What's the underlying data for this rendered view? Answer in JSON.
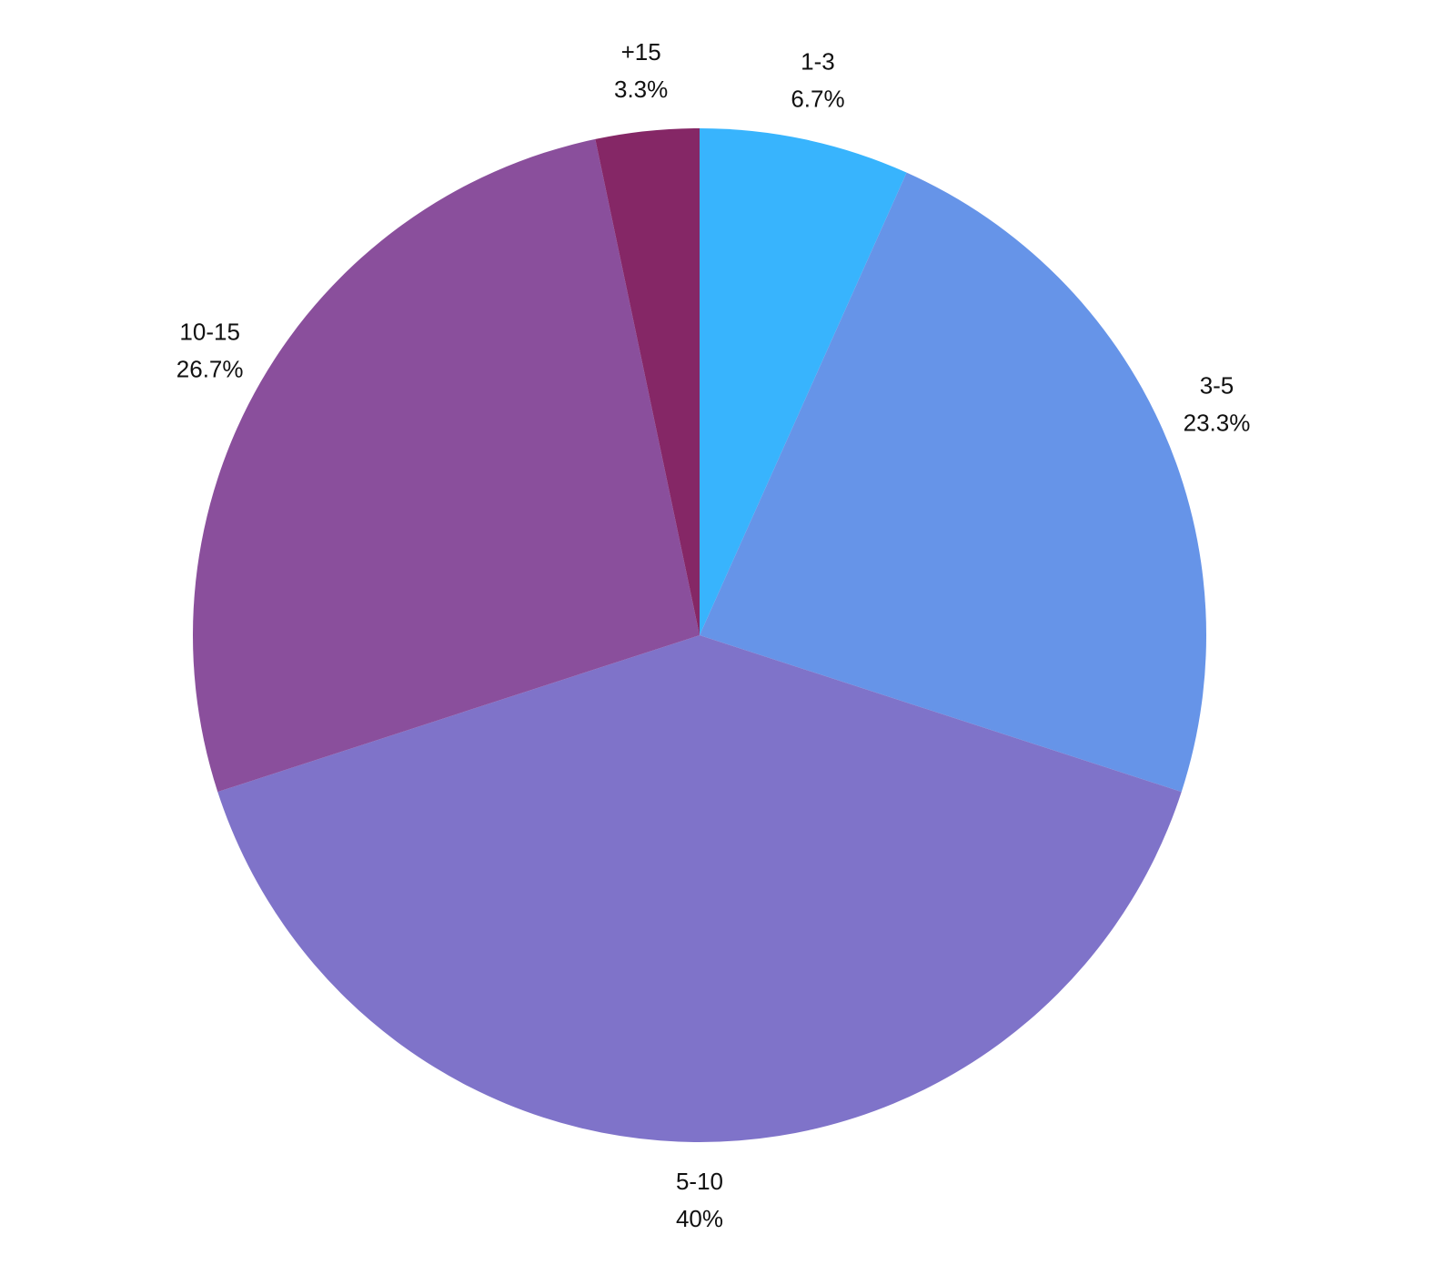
{
  "chart_data": {
    "type": "pie",
    "categories": [
      "1-3",
      "3-5",
      "5-10",
      "10-15",
      "+15"
    ],
    "values": [
      6.7,
      23.3,
      40,
      26.7,
      3.3
    ],
    "value_labels": [
      "6.7%",
      "23.3%",
      "40%",
      "26.7%",
      "3.3%"
    ],
    "colors": [
      "#38b4fd",
      "#6694e8",
      "#7f73c9",
      "#8a4f9c",
      "#852766"
    ]
  }
}
